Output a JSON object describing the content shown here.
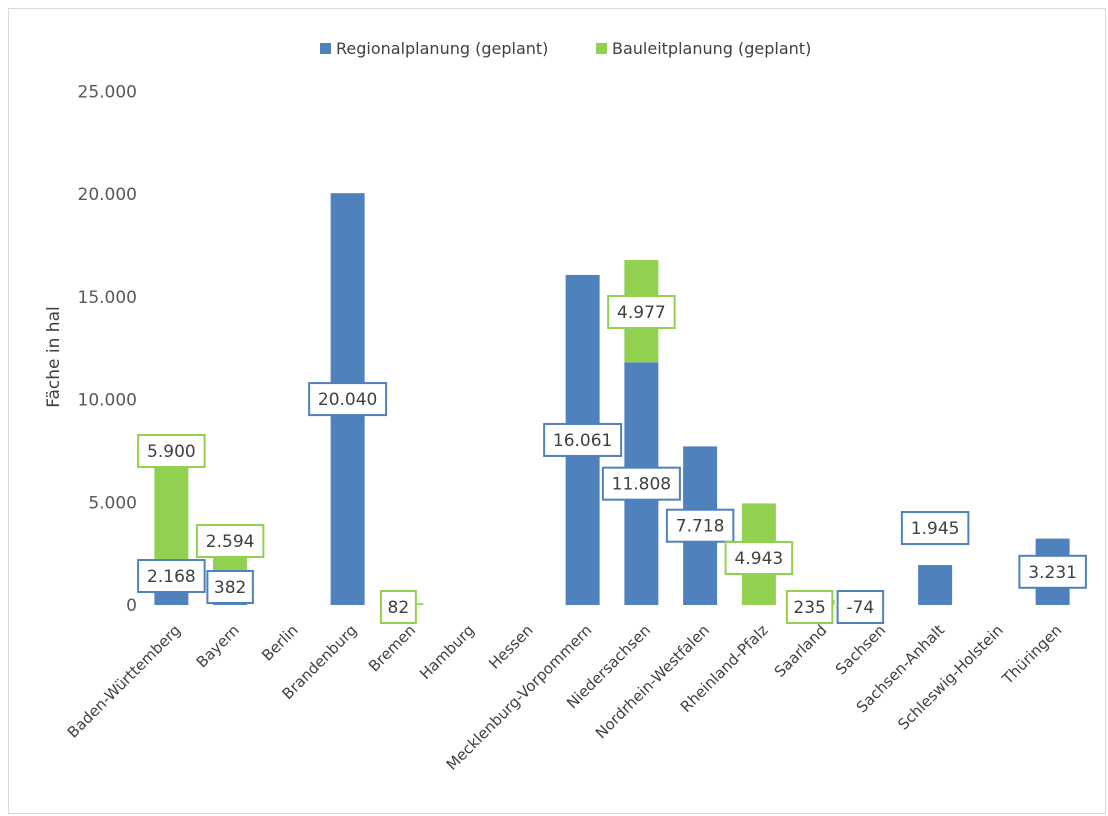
{
  "chart_data": {
    "type": "bar",
    "stacked": true,
    "ylabel": "Fäche in hal",
    "xlabel": "",
    "ylim": [
      0,
      25000
    ],
    "yticks": [
      0,
      5000,
      10000,
      15000,
      20000,
      25000
    ],
    "ytick_labels": [
      "0",
      "5.000",
      "10.000",
      "15.000",
      "20.000",
      "25.000"
    ],
    "legend_position": "top",
    "grid": false,
    "categories": [
      "Baden-Württemberg",
      "Bayern",
      "Berlin",
      "Brandenburg",
      "Bremen",
      "Hamburg",
      "Hessen",
      "Mecklenburg-Vorpommern",
      "Niedersachsen",
      "Nordrhein-Westfalen",
      "Rheinland-Pfalz",
      "Saarland",
      "Sachsen",
      "Sachsen-Anhalt",
      "Schleswig-Holstein",
      "Thüringen"
    ],
    "series": [
      {
        "name": "Regionalplanung (geplant)",
        "color": "#4f81bd",
        "values": [
          2168,
          382,
          null,
          20040,
          null,
          null,
          null,
          16061,
          11808,
          7718,
          null,
          null,
          -74,
          1945,
          null,
          3231
        ],
        "labels": [
          "2.168",
          "382",
          "",
          "20.040",
          "",
          "",
          "",
          "16.061",
          "11.808",
          "7.718",
          "",
          "",
          "-74",
          "1.945",
          "",
          "3.231"
        ]
      },
      {
        "name": "Bauleitplanung (geplant)",
        "color": "#92d050",
        "values": [
          5900,
          2594,
          null,
          null,
          82,
          null,
          null,
          null,
          4977,
          null,
          4943,
          235,
          null,
          null,
          null,
          null
        ],
        "labels": [
          "5.900",
          "2.594",
          "",
          "",
          "82",
          "",
          "",
          "",
          "4.977",
          "",
          "4.943",
          "235",
          "",
          "",
          "",
          ""
        ]
      }
    ]
  }
}
